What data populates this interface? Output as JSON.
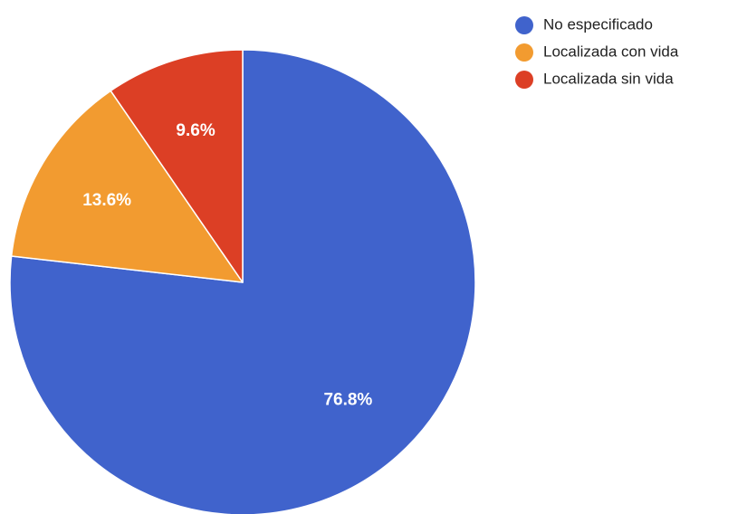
{
  "chart_data": {
    "type": "pie",
    "title": "",
    "start_angle": "12 o'clock",
    "direction": "clockwise",
    "legend_position": "top-right",
    "slices": [
      {
        "label": "No especificado",
        "value": 76.8,
        "value_label": "76.8%",
        "color": "#4063CC"
      },
      {
        "label": "Localizada con vida",
        "value": 13.6,
        "value_label": "13.6%",
        "color": "#F29B30"
      },
      {
        "label": "Localizada sin vida",
        "value": 9.6,
        "value_label": "9.6%",
        "color": "#DC3F25"
      }
    ]
  }
}
